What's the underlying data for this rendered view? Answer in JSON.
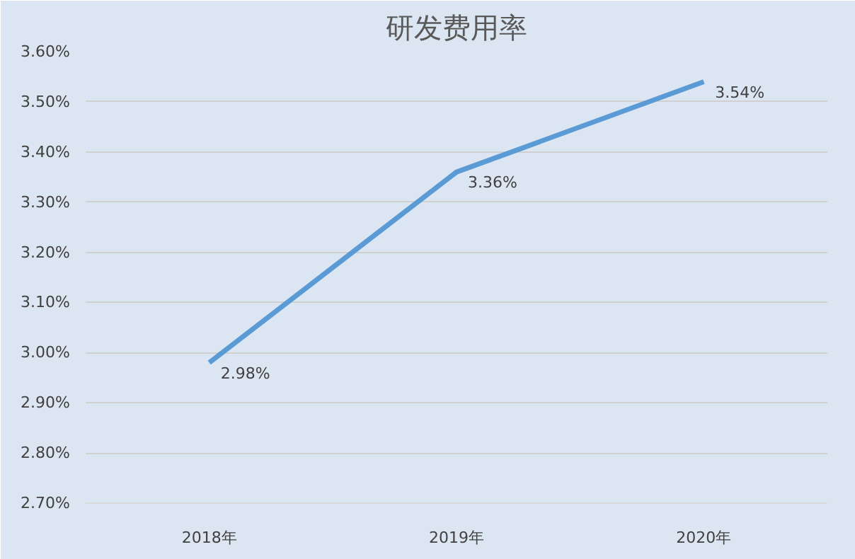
{
  "chart_data": {
    "type": "line",
    "title": "研发费用率",
    "categories": [
      "2018年",
      "2019年",
      "2020年"
    ],
    "series": [
      {
        "color": "#5b9bd5",
        "values": [
          2.98,
          3.36,
          3.54
        ],
        "value_labels": [
          "2.98%",
          "3.36%",
          "3.54%"
        ]
      }
    ],
    "ylim": [
      2.7,
      3.6
    ],
    "yticks": [
      {
        "value": 2.7,
        "label": "2.70%"
      },
      {
        "value": 2.8,
        "label": "2.80%"
      },
      {
        "value": 2.9,
        "label": "2.90%"
      },
      {
        "value": 3.0,
        "label": "3.00%"
      },
      {
        "value": 3.1,
        "label": "3.10%"
      },
      {
        "value": 3.2,
        "label": "3.20%"
      },
      {
        "value": 3.3,
        "label": "3.30%"
      },
      {
        "value": 3.4,
        "label": "3.40%"
      },
      {
        "value": 3.5,
        "label": "3.50%"
      },
      {
        "value": 3.6,
        "label": "3.60%"
      }
    ],
    "grid": "y",
    "marker": "none",
    "line_style": "solid"
  }
}
